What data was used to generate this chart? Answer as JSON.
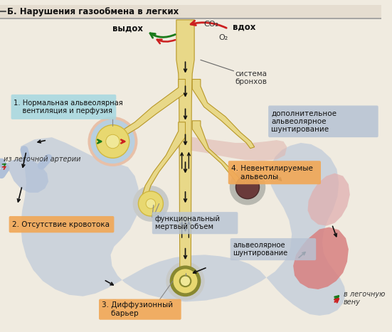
{
  "title": "Б. Нарушения газообмена в легких",
  "bg_color": "#f0ebe0",
  "labels": {
    "vdoh": "вдох",
    "vydoh": "выдох",
    "co2": "CO₂",
    "o2": "O₂",
    "bronchi": "система\nбронхов",
    "label1": "1. Нормальная альвеолярная\n    вентиляция и перфузия",
    "label2": "2. Отсутствие кровотока",
    "label3": "3. Диффузионный\n    барьер",
    "label4": "4. Невентилируемые\n    альвеолы",
    "from_artery": "из легочной артерии",
    "to_vein": "в легочную\nвену",
    "dead_volume": "функциональный\nмертвый объем",
    "alveolar_shunt": "альвеолярное\nшунтирование",
    "add_shunt": "дополнительное\nальвеолярное\nшунтирование"
  },
  "colors": {
    "bronchi_tube": "#e8d888",
    "tube_border": "#c8a830",
    "blood_vessel_blue": "#b0c0d8",
    "blood_vessel_pink": "#e0b0b0",
    "blood_vessel_red": "#d88080",
    "alveole_yellow": "#e8d870",
    "alveole_yellow_dark": "#d0b840",
    "alveole_pink": "#e8c0b0",
    "alveole_blocked": "#6a3a3a",
    "label1_bg": "#a8d8e0",
    "label2_bg": "#f0a858",
    "label3_bg": "#f0a858",
    "label4_bg": "#f0a858",
    "addshunt_bg": "#b8c4d4",
    "deadvolume_bg": "#b8c4d4",
    "arrow_green": "#1a7a1a",
    "arrow_red": "#cc2020",
    "arrow_black": "#111111",
    "tube_border_dark": "#b89828"
  }
}
